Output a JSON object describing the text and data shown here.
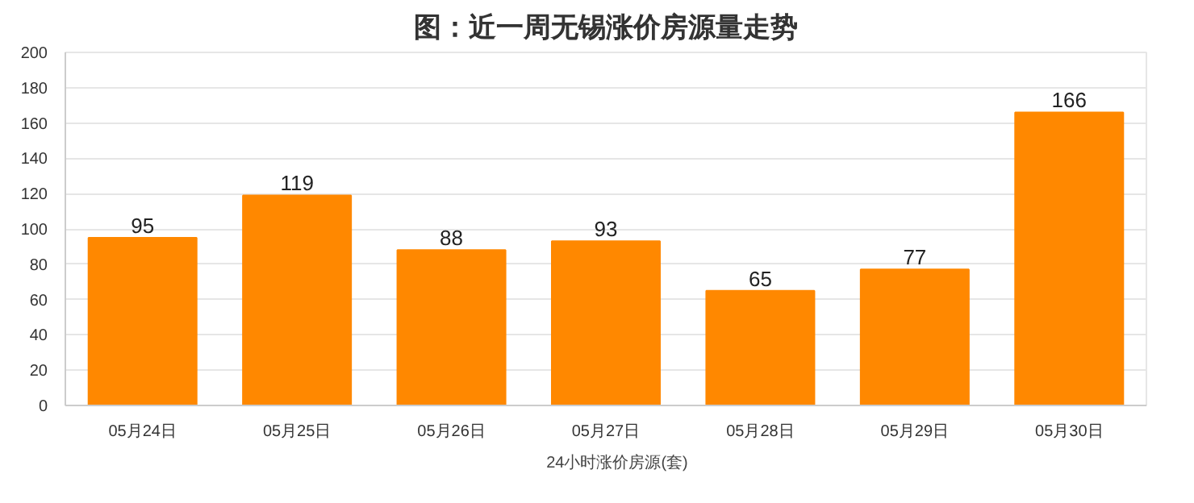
{
  "chart_data": {
    "type": "bar",
    "title": "图：近一周无锡涨价房源量走势",
    "categories": [
      "05月24日",
      "05月25日",
      "05月26日",
      "05月27日",
      "05月28日",
      "05月29日",
      "05月30日"
    ],
    "series": [
      {
        "name": "24小时涨价房源(套)",
        "color": "#ff8800",
        "values": [
          95,
          119,
          88,
          93,
          65,
          77,
          166
        ]
      }
    ],
    "ylim": [
      0,
      200
    ],
    "yticks": [
      0,
      20,
      40,
      60,
      80,
      100,
      120,
      140,
      160,
      180,
      200
    ],
    "grid": "y",
    "legend": "bottom",
    "data_labels": true
  }
}
